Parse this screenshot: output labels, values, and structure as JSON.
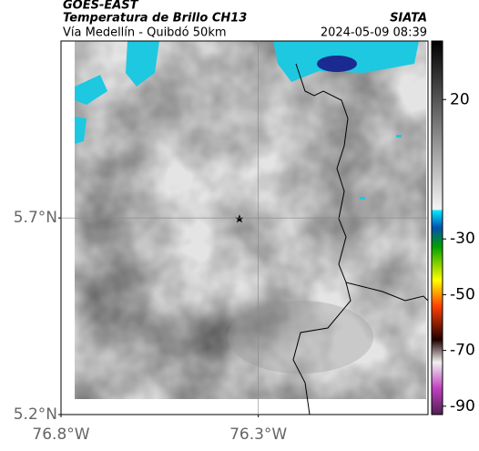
{
  "header": {
    "title": "GOES-EAST",
    "subtitle": "Temperatura de Brillo CH13",
    "source": "SIATA",
    "route": "Vía Medellín - Quibdó 50km",
    "timestamp": "2024-05-09 08:39"
  },
  "map": {
    "latlim": [
      5.2,
      6.15
    ],
    "lonlim": [
      -76.8,
      -75.87
    ],
    "lat_ticks": [
      {
        "value": 5.7,
        "label": "5.7°N"
      },
      {
        "value": 5.2,
        "label": "5.2°N"
      }
    ],
    "lon_ticks": [
      {
        "value": -76.8,
        "label": "76.8°W"
      },
      {
        "value": -76.3,
        "label": "76.3°W"
      }
    ],
    "colorbar": {
      "lim": [
        -93,
        41
      ],
      "ticks": [
        20,
        -30,
        -50,
        -70,
        -90
      ]
    }
  }
}
